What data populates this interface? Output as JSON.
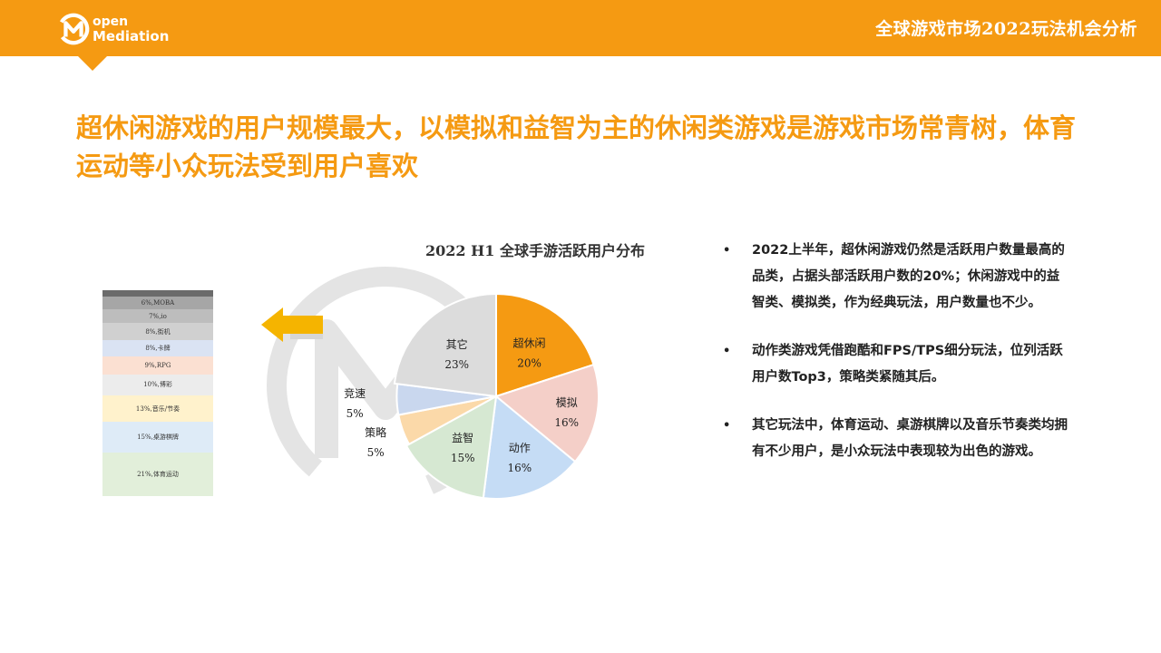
{
  "header": {
    "brand_line1": "open",
    "brand_line2": "Mediation",
    "title": "全球游戏市场2022玩法机会分析",
    "colors": {
      "bar": "#f59a12",
      "text": "#ffffff"
    }
  },
  "headline": "超休闲游戏的用户规模最大，以模拟和益智为主的休闲类游戏是游戏市场常青树，体育运动等小众玩法受到用户喜欢",
  "stack": {
    "rows": [
      {
        "label": "6%,MOBA",
        "pct": 6,
        "color": "#a6a6a6"
      },
      {
        "label": "7%,io",
        "pct": 7,
        "color": "#bdbdbd"
      },
      {
        "label": "8%,街机",
        "pct": 8,
        "color": "#d0d0d0"
      },
      {
        "label": "8%,卡牌",
        "pct": 8,
        "color": "#dae3f3"
      },
      {
        "label": "9%,RPG",
        "pct": 9,
        "color": "#fbe0d2"
      },
      {
        "label": "10%,博彩",
        "pct": 10,
        "color": "#ececec"
      },
      {
        "label": "13%,音乐/节奏",
        "pct": 13,
        "color": "#fff2cc"
      },
      {
        "label": "15%,桌游棋牌",
        "pct": 15,
        "color": "#deebf7"
      },
      {
        "label": "21%,体育运动",
        "pct": 21,
        "color": "#e2efda"
      }
    ]
  },
  "chart_data": {
    "type": "pie",
    "title": "2022 H1 全球手游活跃用户分布",
    "slices": [
      {
        "name": "超休闲",
        "value": 20,
        "label": "20%",
        "color": "#f59a12"
      },
      {
        "name": "模拟",
        "value": 16,
        "label": "16%",
        "color": "#f4cfc8"
      },
      {
        "name": "动作",
        "value": 16,
        "label": "16%",
        "color": "#c5dcf5"
      },
      {
        "name": "益智",
        "value": 15,
        "label": "15%",
        "color": "#d6e8d2"
      },
      {
        "name": "策略",
        "value": 5,
        "label": "5%",
        "color": "#fbd9a9"
      },
      {
        "name": "竞速",
        "value": 5,
        "label": "5%",
        "color": "#c9d7ee"
      },
      {
        "name": "其它",
        "value": 23,
        "label": "23%",
        "color": "#dcdcdc"
      }
    ]
  },
  "bullets": [
    "2022上半年，超休闲游戏仍然是活跃用户数量最高的品类，占据头部活跃用户数的20%；休闲游戏中的益智类、模拟类，作为经典玩法，用户数量也不少。",
    "动作类游戏凭借跑酷和FPS/TPS细分玩法，位列活跃用户数Top3，策略类紧随其后。",
    "其它玩法中，体育运动、桌游棋牌以及音乐节奏类均拥有不少用户，是小众玩法中表现较为出色的游戏。"
  ],
  "bullet_symbol": "•"
}
